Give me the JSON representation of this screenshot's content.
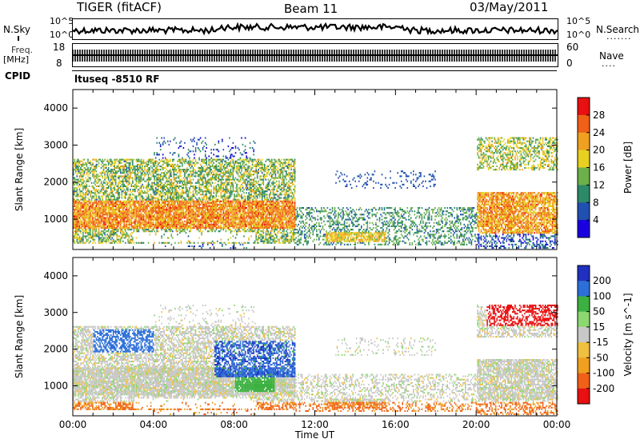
{
  "header": {
    "radar": "TIGER (fitACF)",
    "beam": "Beam 11",
    "date": "03/May/2011"
  },
  "labels": {
    "nsky": "N.Sky",
    "nsky_top": "10^5",
    "nsky_bottom": "10^0",
    "nsearch": "N.Search",
    "nsearch_top": "10^5",
    "nsearch_bottom": "10^0",
    "freq": "Freq.",
    "mhz": "[MHz]",
    "freq_top": "18",
    "freq_bottom": "8",
    "nave": "Nave",
    "nave_top": "60",
    "nave_bottom": "0",
    "cpid": "CPID",
    "cpid_value": "ltuseq -8510 RF"
  },
  "chart_data": [
    {
      "type": "heatmap",
      "panel": "power",
      "ylabel": "Slant Range [km]",
      "xlabel": "",
      "ylim": [
        180,
        4500
      ],
      "yticks": [
        "1000",
        "2000",
        "3000",
        "4000"
      ],
      "xticks": [],
      "colorbar": {
        "label": "Power [dB]",
        "ticks": [
          "4",
          "8",
          "12",
          "16",
          "20",
          "24",
          "28"
        ],
        "range": [
          0,
          30
        ],
        "colors": [
          "#1a00e0",
          "#2050b0",
          "#2d8a68",
          "#6cb04a",
          "#e8d020",
          "#f0a020",
          "#f06018",
          "#e81010"
        ]
      },
      "description_regions": [
        {
          "time": [
            0,
            11
          ],
          "range": [
            700,
            1600
          ],
          "level": "high"
        },
        {
          "time": [
            0,
            11
          ],
          "range": [
            300,
            2800
          ],
          "level": "mid"
        },
        {
          "time": [
            11,
            20
          ],
          "range": [
            250,
            1300
          ],
          "level": "low"
        },
        {
          "time": [
            20,
            24
          ],
          "range": [
            500,
            1800
          ],
          "level": "high"
        }
      ]
    },
    {
      "type": "heatmap",
      "panel": "velocity",
      "ylabel": "Slant Range [km]",
      "xlabel": "Time UT",
      "ylim": [
        180,
        4500
      ],
      "yticks": [
        "1000",
        "2000",
        "3000",
        "4000"
      ],
      "xticks": [
        "00:00",
        "04:00",
        "08:00",
        "12:00",
        "16:00",
        "20:00",
        "00:00"
      ],
      "colorbar": {
        "label": "Velocity [m s^-1]",
        "ticks": [
          "200",
          "100",
          "50",
          "15",
          "-15",
          "-50",
          "-100",
          "-200"
        ],
        "range": [
          -250,
          250
        ],
        "colors": [
          "#2030c0",
          "#2c6fd8",
          "#3cb040",
          "#8cd870",
          "#c8c8c8",
          "#f0c040",
          "#f0a020",
          "#f06018",
          "#e81010"
        ]
      }
    }
  ]
}
